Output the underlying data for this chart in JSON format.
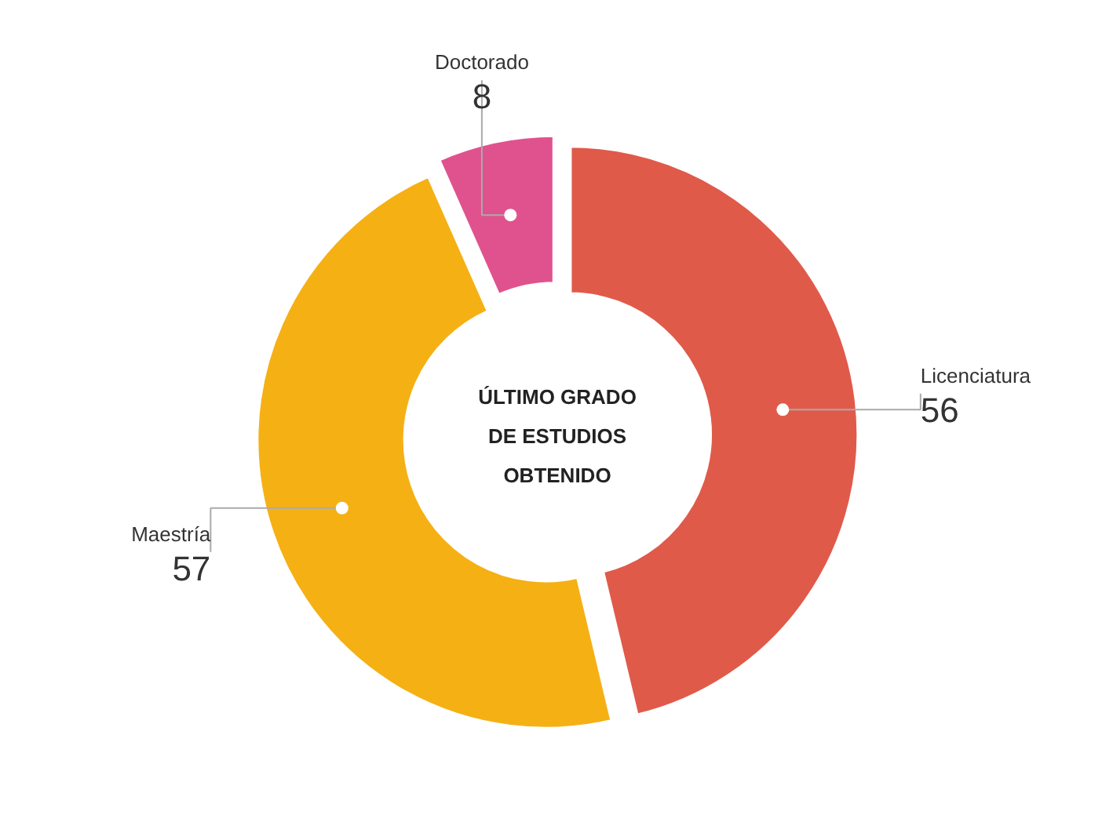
{
  "chart_data": {
    "type": "donut",
    "title": "ÚLTIMO GRADO DE ESTUDIOS OBTENIDO",
    "categories": [
      "Licenciatura",
      "Maestría",
      "Doctorado"
    ],
    "values": [
      56,
      57,
      8
    ],
    "colors": [
      "#e05a4a",
      "#f5b014",
      "#e0528e"
    ],
    "data_labels": true
  }
}
